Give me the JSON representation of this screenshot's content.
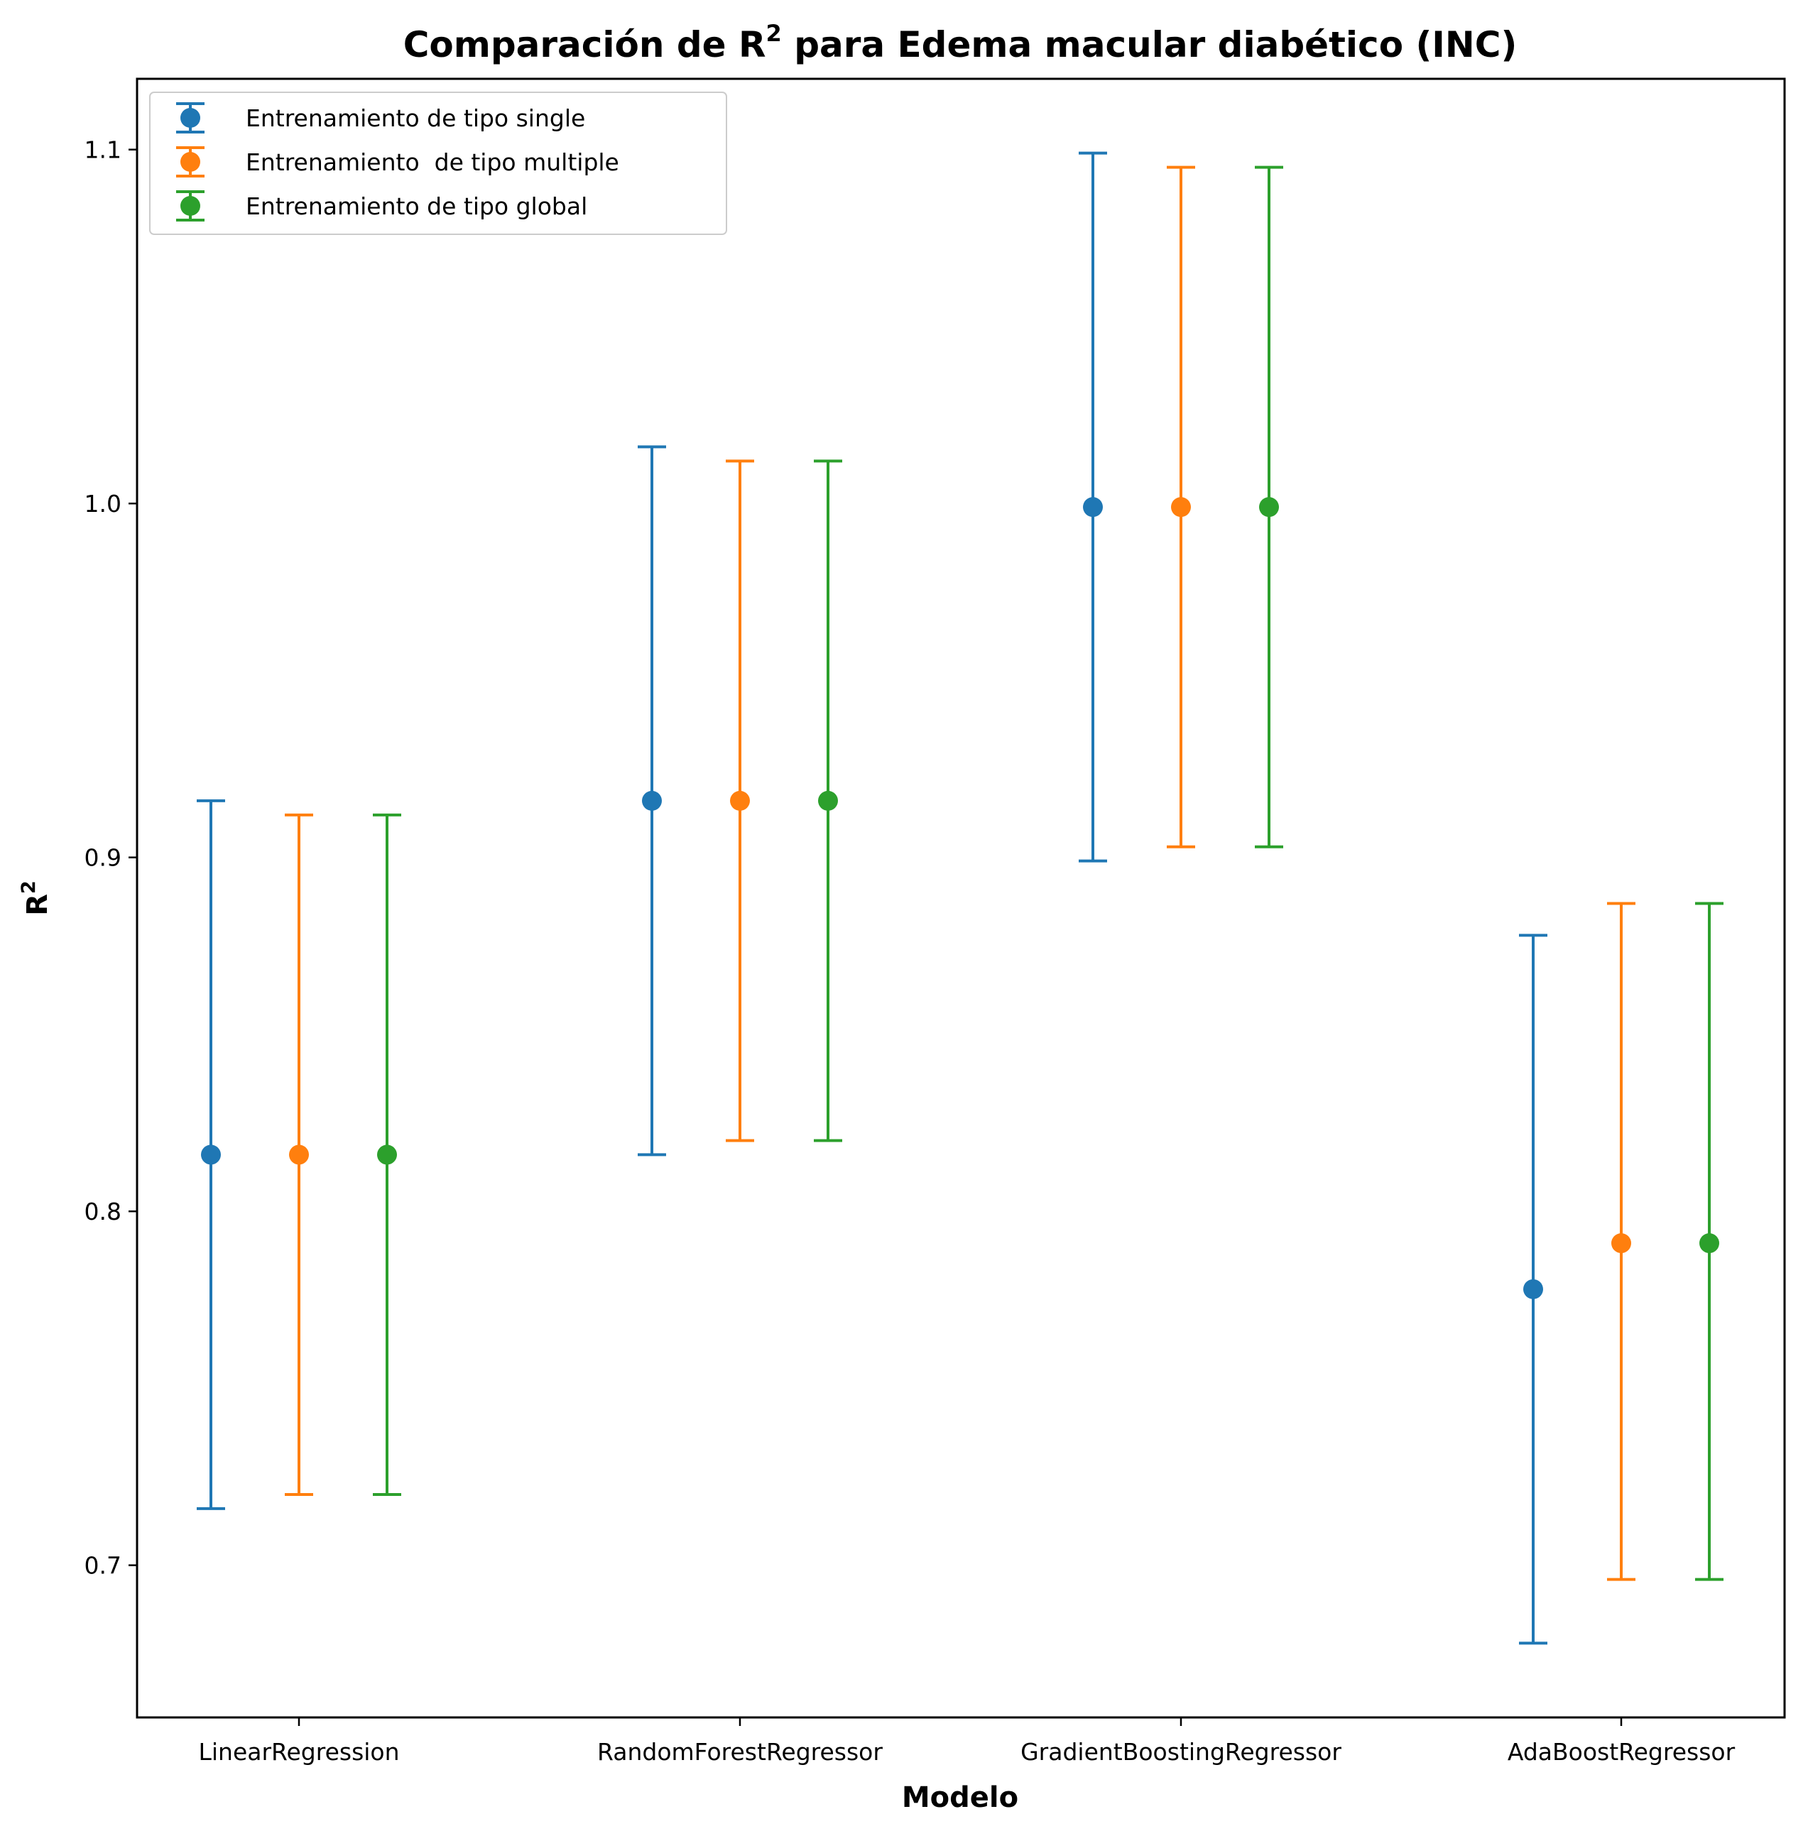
{
  "chart_data": {
    "type": "scatter",
    "title_main": "Comparación de R",
    "title_sup": "2",
    "title_rest": " para Edema macular diabético (INC)",
    "xlabel": "Modelo",
    "ylabel_main": "R",
    "ylabel_sup": "2",
    "categories": [
      "LinearRegression",
      "RandomForestRegressor",
      "GradientBoostingRegressor",
      "AdaBoostRegressor"
    ],
    "ylim": [
      0.657,
      1.12
    ],
    "yticks": [
      0.7,
      0.8,
      0.9,
      1.0,
      1.1
    ],
    "ytick_labels": [
      "0.7",
      "0.8",
      "0.9",
      "1.0",
      "1.1"
    ],
    "legend_position": "upper-left",
    "series": [
      {
        "name": "Entrenamiento de tipo single",
        "color": "#1f77b4",
        "offset": -1,
        "values": [
          0.816,
          0.916,
          0.999,
          0.778
        ],
        "lower": [
          0.716,
          0.816,
          0.899,
          0.678
        ],
        "upper": [
          0.916,
          1.016,
          1.099,
          0.878
        ]
      },
      {
        "name": "Entrenamiento  de tipo multiple",
        "color": "#ff7f0e",
        "offset": 0,
        "values": [
          0.816,
          0.916,
          0.999,
          0.791
        ],
        "lower": [
          0.72,
          0.82,
          0.903,
          0.696
        ],
        "upper": [
          0.912,
          1.012,
          1.095,
          0.887
        ]
      },
      {
        "name": "Entrenamiento de tipo global",
        "color": "#2ca02c",
        "offset": 1,
        "values": [
          0.816,
          0.916,
          0.999,
          0.791
        ],
        "lower": [
          0.72,
          0.82,
          0.903,
          0.696
        ],
        "upper": [
          0.912,
          1.012,
          1.095,
          0.887
        ]
      }
    ]
  }
}
